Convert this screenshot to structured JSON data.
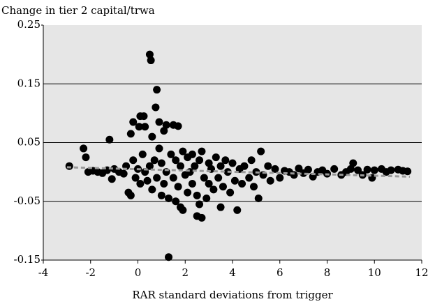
{
  "chart_data": {
    "type": "scatter",
    "title": "Change in tier 2 capital/trwa",
    "x_label": "RAR standard deviations from trigger",
    "xlim": [
      -4,
      12
    ],
    "xticks": [
      -4,
      -2,
      0,
      2,
      4,
      6,
      8,
      10,
      12
    ],
    "ylim": [
      -0.15,
      0.25
    ],
    "yticks": [
      -0.15,
      -0.05,
      0.05,
      0.15,
      0.25
    ],
    "grid": true,
    "series": [
      {
        "color": "#000000",
        "x": [
          -2.9,
          -2.3,
          -2.2,
          -2.1,
          -1.9,
          -1.7,
          -1.5,
          -1.3,
          -1.2,
          -1.1,
          -1.0,
          -0.8,
          -0.6,
          -0.5,
          -0.4,
          -0.3,
          -0.3,
          -0.2,
          -0.2,
          -0.1,
          0.0,
          0.05,
          0.1,
          0.1,
          0.2,
          0.25,
          0.3,
          0.3,
          0.4,
          0.5,
          0.55,
          0.5,
          0.6,
          0.6,
          0.7,
          0.75,
          0.8,
          0.8,
          0.9,
          0.9,
          1.0,
          1.0,
          1.1,
          1.1,
          1.2,
          1.2,
          1.3,
          1.3,
          1.4,
          1.5,
          1.5,
          1.6,
          1.6,
          1.7,
          1.7,
          1.8,
          1.8,
          1.9,
          1.9,
          2.0,
          2.1,
          2.1,
          2.2,
          2.3,
          2.3,
          2.4,
          2.5,
          2.5,
          2.6,
          2.6,
          2.7,
          2.7,
          2.8,
          2.9,
          3.0,
          3.0,
          3.1,
          3.2,
          3.3,
          3.4,
          3.5,
          3.5,
          3.6,
          3.7,
          3.8,
          3.9,
          4.0,
          4.1,
          4.2,
          4.3,
          4.4,
          4.5,
          4.7,
          4.8,
          4.9,
          5.0,
          5.1,
          5.2,
          5.3,
          5.5,
          5.6,
          5.8,
          6.0,
          6.2,
          6.4,
          6.6,
          6.8,
          7.0,
          7.2,
          7.4,
          7.6,
          7.8,
          8.0,
          8.3,
          8.6,
          8.8,
          9.0,
          9.1,
          9.3,
          9.5,
          9.7,
          9.9,
          10.0,
          10.3,
          10.5,
          10.7,
          11.0,
          11.2,
          11.4
        ],
        "values": [
          0.01,
          0.04,
          0.025,
          0.0,
          0.002,
          0.0,
          -0.002,
          0.003,
          0.055,
          -0.012,
          0.005,
          0.0,
          -0.003,
          0.01,
          -0.035,
          -0.04,
          0.065,
          0.085,
          0.02,
          -0.01,
          0.005,
          0.077,
          0.095,
          -0.02,
          0.03,
          0.095,
          0.077,
          0.0,
          -0.015,
          0.2,
          0.19,
          0.01,
          0.06,
          -0.03,
          0.02,
          0.11,
          0.14,
          -0.01,
          0.085,
          0.04,
          -0.04,
          0.015,
          0.07,
          -0.02,
          0.08,
          0.0,
          -0.145,
          -0.045,
          0.03,
          0.08,
          -0.01,
          -0.05,
          0.02,
          0.078,
          -0.025,
          -0.06,
          0.01,
          -0.065,
          0.035,
          -0.005,
          0.025,
          -0.035,
          0.0,
          -0.02,
          0.03,
          0.01,
          -0.075,
          -0.04,
          -0.055,
          0.02,
          -0.078,
          0.035,
          -0.01,
          -0.045,
          0.015,
          -0.02,
          0.005,
          -0.03,
          0.025,
          -0.01,
          -0.06,
          0.01,
          -0.025,
          0.02,
          0.0,
          -0.035,
          0.015,
          -0.015,
          -0.065,
          0.005,
          -0.02,
          0.01,
          -0.01,
          0.02,
          -0.025,
          0.0,
          -0.045,
          0.035,
          -0.005,
          0.01,
          -0.015,
          0.005,
          -0.01,
          0.002,
          0.0,
          -0.005,
          0.006,
          -0.002,
          0.004,
          -0.008,
          0.0,
          0.003,
          -0.003,
          0.005,
          -0.005,
          0.0,
          0.005,
          0.015,
          0.003,
          -0.005,
          0.004,
          -0.01,
          0.003,
          0.005,
          0.0,
          0.003,
          0.004,
          0.002,
          0.001
        ]
      }
    ],
    "trend": {
      "color": "#999999",
      "x": [
        -3,
        11.5
      ],
      "values": [
        0.008,
        -0.008
      ]
    }
  }
}
